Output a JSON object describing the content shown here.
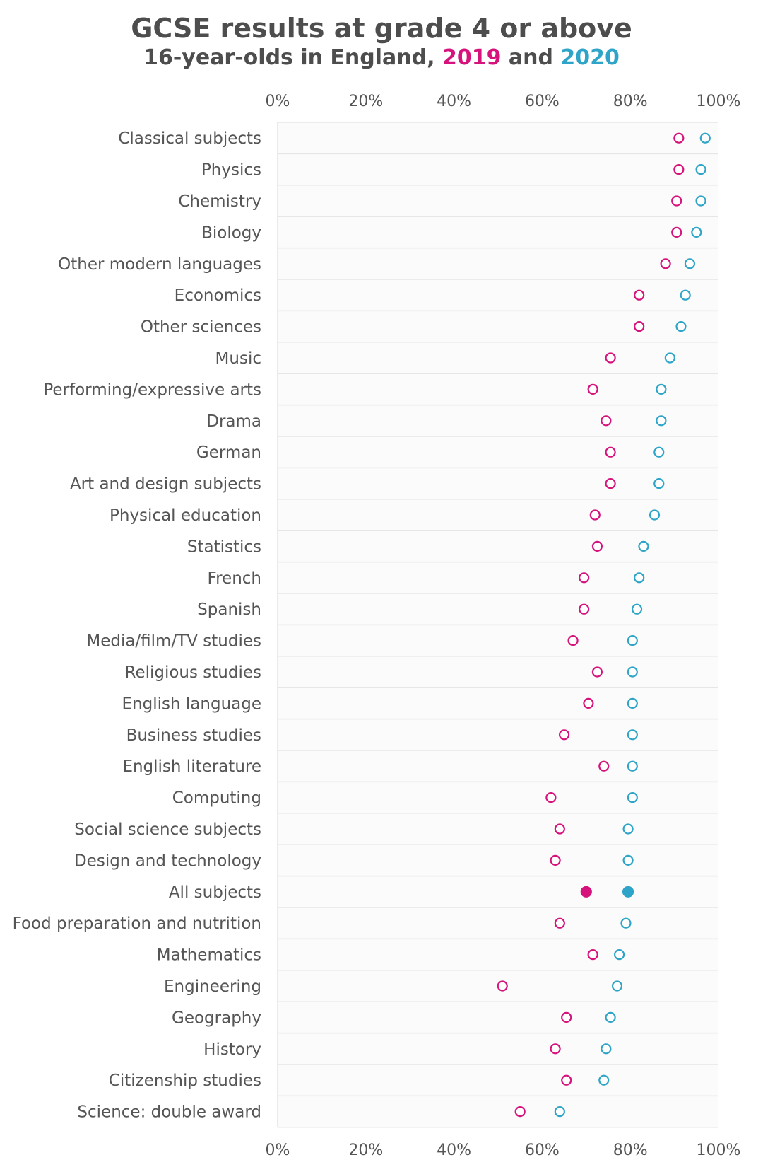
{
  "chart_data": {
    "type": "scatter",
    "title": "GCSE results at grade 4 or above",
    "subtitle": {
      "prefix": "16-year-olds in England, ",
      "series1": "2019",
      "connector": " and ",
      "series2": "2020"
    },
    "xlim": [
      0,
      100
    ],
    "x_ticks": [
      "0%",
      "20%",
      "40%",
      "60%",
      "80%",
      "100%"
    ],
    "x_tick_values": [
      0,
      20,
      40,
      60,
      80,
      100
    ],
    "highlight_category": "All subjects",
    "categories": [
      "Classical subjects",
      "Physics",
      "Chemistry",
      "Biology",
      "Other modern languages",
      "Economics",
      "Other sciences",
      "Music",
      "Performing/expressive arts",
      "Drama",
      "German",
      "Art and design subjects",
      "Physical education",
      "Statistics",
      "French",
      "Spanish",
      "Media/film/TV studies",
      "Religious studies",
      "English language",
      "Business studies",
      "English literature",
      "Computing",
      "Social science subjects",
      "Design and technology",
      "All subjects",
      "Food preparation and nutrition",
      "Mathematics",
      "Engineering",
      "Geography",
      "History",
      "Citizenship studies",
      "Science: double award"
    ],
    "series": [
      {
        "name": "2019",
        "color": "#d6127c",
        "values": [
          91,
          91,
          90.5,
          90.5,
          88,
          82,
          82,
          75.5,
          71.5,
          74.5,
          75.5,
          75.5,
          72,
          72.5,
          69.5,
          69.5,
          67,
          72.5,
          70.5,
          65,
          74,
          62,
          64,
          63,
          70,
          64,
          71.5,
          51,
          65.5,
          63,
          65.5,
          55
        ]
      },
      {
        "name": "2020",
        "color": "#2ea5c8",
        "values": [
          97,
          96,
          96,
          95,
          93.5,
          92.5,
          91.5,
          89,
          87,
          87,
          86.5,
          86.5,
          85.5,
          83,
          82,
          81.5,
          80.5,
          80.5,
          80.5,
          80.5,
          80.5,
          80.5,
          79.5,
          79.5,
          79.5,
          79,
          77.5,
          77,
          75.5,
          74.5,
          74,
          64
        ]
      }
    ]
  }
}
